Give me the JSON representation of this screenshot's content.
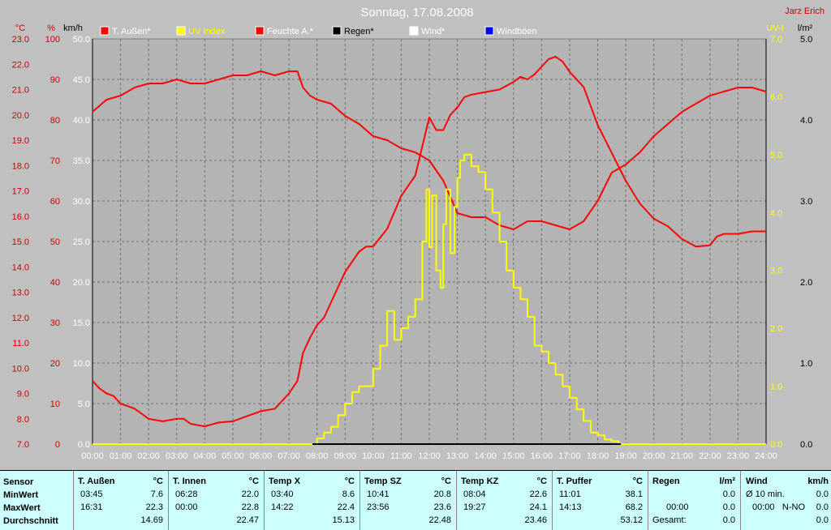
{
  "title": "Sonntag, 17.08.2008",
  "author": "Jarz Erich",
  "legend": [
    {
      "label": "T. Außen*",
      "color": "#ff0000"
    },
    {
      "label": "UV Index",
      "color": "#ffff00"
    },
    {
      "label": "Feuchte A.*",
      "color": "#ff0000"
    },
    {
      "label": "Regen*",
      "color": "#000000"
    },
    {
      "label": "Wind*",
      "color": "#ffffff"
    },
    {
      "label": "Windböen",
      "color": "#0000ff"
    }
  ],
  "axis_units": {
    "temp": "°C",
    "humidity": "%",
    "wind": "km/h",
    "uv": "UV-I",
    "rain": "l/m²"
  },
  "colors": {
    "background": "#c0c0c0",
    "plot": "#b4b4b4",
    "temp": "#ff0000",
    "humidity": "#ff0000",
    "uv": "#ffff00",
    "rain": "#000000",
    "stats_bg": "#ccffff"
  },
  "chart_data": {
    "type": "line",
    "title": "Sonntag, 17.08.2008",
    "x_ticks": [
      "00:00",
      "01:00",
      "02:00",
      "03:00",
      "04:00",
      "05:00",
      "06:00",
      "07:00",
      "08:00",
      "09:00",
      "10:00",
      "11:00",
      "12:00",
      "13:00",
      "14:00",
      "15:00",
      "16:00",
      "17:00",
      "18:00",
      "19:00",
      "20:00",
      "21:00",
      "22:00",
      "23:00",
      "24:00"
    ],
    "temp_ticks": [
      "7.0",
      "8.0",
      "9.0",
      "10.0",
      "11.0",
      "12.0",
      "13.0",
      "14.0",
      "15.0",
      "16.0",
      "17.0",
      "18.0",
      "19.0",
      "20.0",
      "21.0",
      "22.0",
      "23.0"
    ],
    "humidity_ticks": [
      "0",
      "10",
      "20",
      "30",
      "40",
      "50",
      "60",
      "70",
      "80",
      "90",
      "100"
    ],
    "wind_ticks": [
      "0.0",
      "5.0",
      "10.0",
      "15.0",
      "20.0",
      "25.0",
      "30.0",
      "35.0",
      "40.0",
      "45.0",
      "50.0"
    ],
    "uv_ticks": [
      "0.0",
      "1.0",
      "2.0",
      "3.0",
      "4.0",
      "5.0",
      "6.0",
      "7.0"
    ],
    "rain_ticks": [
      "0.0",
      "1.0",
      "2.0",
      "3.0",
      "4.0",
      "5.0"
    ],
    "temp_range": [
      7,
      23
    ],
    "humidity_range": [
      0,
      100
    ],
    "uv_range": [
      0,
      7
    ],
    "series": [
      {
        "name": "T. Außen*",
        "unit": "°C",
        "x_hours": [
          0,
          0.25,
          0.5,
          0.75,
          1,
          1.25,
          1.5,
          1.75,
          2,
          2.5,
          3,
          3.25,
          3.5,
          3.75,
          4,
          4.5,
          5,
          5.5,
          6,
          6.5,
          7,
          7.3,
          7.5,
          7.75,
          8,
          8.25,
          8.5,
          8.75,
          9,
          9.25,
          9.5,
          9.75,
          10,
          10.5,
          11,
          11.5,
          12,
          12.25,
          12.5,
          12.75,
          13,
          13.25,
          13.5,
          14,
          14.5,
          15,
          15.25,
          15.5,
          15.75,
          16,
          16.25,
          16.5,
          16.75,
          17,
          17.5,
          18,
          18.5,
          19,
          19.5,
          20,
          20.5,
          21,
          21.5,
          22,
          22.25,
          22.5,
          23,
          23.5,
          24
        ],
        "values": [
          9.5,
          9.2,
          9.0,
          8.9,
          8.6,
          8.5,
          8.4,
          8.2,
          8.0,
          7.9,
          8.0,
          8.0,
          7.8,
          7.75,
          7.7,
          7.85,
          7.9,
          8.1,
          8.3,
          8.4,
          9.0,
          9.5,
          10.6,
          11.2,
          11.7,
          12.0,
          12.6,
          13.2,
          13.8,
          14.2,
          14.6,
          14.8,
          14.8,
          15.5,
          16.8,
          17.6,
          19.9,
          19.4,
          19.4,
          20.0,
          20.3,
          20.7,
          20.8,
          20.9,
          21.0,
          21.3,
          21.5,
          21.4,
          21.6,
          21.9,
          22.2,
          22.3,
          22.1,
          21.7,
          21.1,
          19.6,
          18.5,
          17.4,
          16.5,
          15.9,
          15.6,
          15.1,
          14.8,
          14.85,
          15.2,
          15.3,
          15.3,
          15.4,
          15.4
        ]
      },
      {
        "name": "Feuchte A.*",
        "unit": "%",
        "x_hours": [
          0,
          0.5,
          1,
          1.5,
          2,
          2.5,
          3,
          3.5,
          4,
          4.5,
          5,
          5.5,
          6,
          6.5,
          7,
          7.3,
          7.5,
          7.75,
          8,
          8.5,
          9,
          9.5,
          10,
          10.5,
          11,
          11.5,
          12,
          12.5,
          13,
          13.5,
          14,
          14.5,
          15,
          15.5,
          16,
          16.5,
          17,
          17.5,
          18,
          18.5,
          19,
          19.5,
          20,
          20.5,
          21,
          21.5,
          22,
          22.5,
          23,
          23.5,
          24
        ],
        "values": [
          82,
          85,
          86,
          88,
          89,
          89,
          90,
          89,
          89,
          90,
          91,
          91,
          92,
          91,
          92,
          92,
          88,
          86,
          85,
          84,
          81,
          79,
          76,
          75,
          73,
          72,
          70,
          65,
          57,
          56,
          56,
          54,
          53,
          55,
          55,
          54,
          53,
          55,
          60,
          67,
          69,
          72,
          76,
          79,
          82,
          84,
          86,
          87,
          88,
          88,
          87
        ]
      },
      {
        "name": "UV Index",
        "unit": "UV-I",
        "x_hours": [
          0,
          7.75,
          8,
          8.25,
          8.5,
          8.75,
          9,
          9.25,
          9.5,
          10,
          10.25,
          10.5,
          10.75,
          11,
          11.25,
          11.5,
          11.75,
          11.9,
          12,
          12.1,
          12.25,
          12.4,
          12.5,
          12.6,
          12.75,
          12.9,
          13,
          13.1,
          13.25,
          13.5,
          13.75,
          14,
          14.25,
          14.5,
          14.75,
          15,
          15.25,
          15.5,
          15.75,
          16,
          16.25,
          16.5,
          16.75,
          17,
          17.25,
          17.5,
          17.75,
          18,
          18.25,
          18.5,
          18.75,
          19,
          24
        ],
        "values": [
          0,
          0,
          0.1,
          0.2,
          0.3,
          0.5,
          0.7,
          0.9,
          1.0,
          1.3,
          1.7,
          2.3,
          1.8,
          2.0,
          2.2,
          2.5,
          3.5,
          4.4,
          3.4,
          4.3,
          3.0,
          2.7,
          3.8,
          4.4,
          3.3,
          4.1,
          4.6,
          4.9,
          5.0,
          4.8,
          4.7,
          4.4,
          4.0,
          3.5,
          3.0,
          2.7,
          2.5,
          2.2,
          1.7,
          1.6,
          1.4,
          1.2,
          1.0,
          0.8,
          0.6,
          0.4,
          0.2,
          0.15,
          0.08,
          0.05,
          0,
          0,
          0
        ]
      }
    ]
  },
  "stats": {
    "sensor": {
      "header": "Sensor",
      "min": "MinWert",
      "max": "MaxWert",
      "avg": "Durchschnitt"
    },
    "columns": [
      {
        "name": "T. Außen",
        "unit": "°C",
        "min_time": "03:45",
        "min_val": "7.6",
        "max_time": "16:31",
        "max_val": "22.3",
        "avg": "14.69"
      },
      {
        "name": "T. Innen",
        "unit": "°C",
        "min_time": "06:28",
        "min_val": "22.0",
        "max_time": "00:00",
        "max_val": "22.8",
        "avg": "22.47"
      },
      {
        "name": "Temp X",
        "unit": "°C",
        "min_time": "03:40",
        "min_val": "8.6",
        "max_time": "14:22",
        "max_val": "22.4",
        "avg": "15.13"
      },
      {
        "name": "Temp SZ",
        "unit": "°C",
        "min_time": "10:41",
        "min_val": "20.8",
        "max_time": "23:56",
        "max_val": "23.6",
        "avg": "22.48"
      },
      {
        "name": "Temp KZ",
        "unit": "°C",
        "min_time": "08:04",
        "min_val": "22.6",
        "max_time": "19:27",
        "max_val": "24.1",
        "avg": "23.46"
      },
      {
        "name": "T. Puffer",
        "unit": "°C",
        "min_time": "11:01",
        "min_val": "38.1",
        "max_time": "14:13",
        "max_val": "68.2",
        "avg": "53.12"
      }
    ],
    "rain": {
      "name": "Regen",
      "unit": "l/m²",
      "min_time": "",
      "min_val": "0.0",
      "max_time": "00:00",
      "max_val": "0.0",
      "total_label": "Gesamt:",
      "total_val": "0.0"
    },
    "wind": {
      "name": "Wind",
      "unit": "km/h",
      "min_time": "Ø 10 min.",
      "min_val": "0.0",
      "max_time": "00:00",
      "max_dir": "N-NO",
      "max_val": "0.0",
      "avg_val": "0.0"
    }
  }
}
